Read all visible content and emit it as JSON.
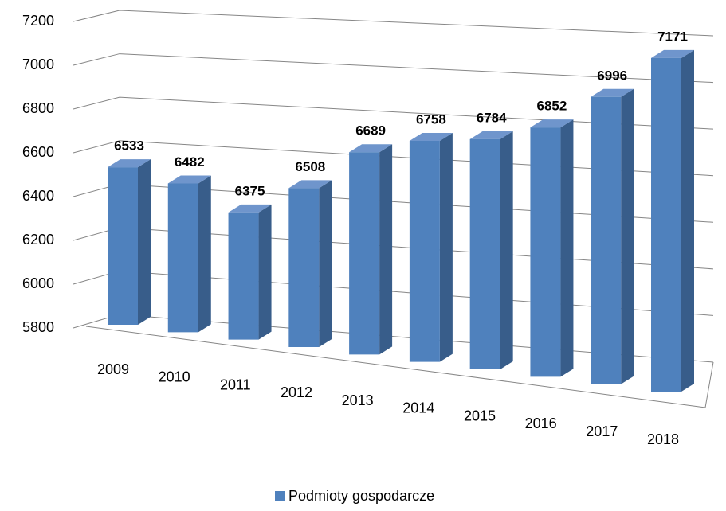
{
  "chart_data": {
    "type": "bar3d",
    "categories": [
      "2009",
      "2010",
      "2011",
      "2012",
      "2013",
      "2014",
      "2015",
      "2016",
      "2017",
      "2018"
    ],
    "series": [
      {
        "name": "Podmioty gospodarcze",
        "color": "#4f81bd",
        "values": [
          6533,
          6482,
          6375,
          6508,
          6689,
          6758,
          6784,
          6852,
          6996,
          7171
        ]
      }
    ],
    "ylim": [
      5800,
      7200
    ],
    "yticks": [
      5800,
      6000,
      6200,
      6400,
      6600,
      6800,
      7000,
      7200
    ],
    "grid": true,
    "legend": "bottom"
  }
}
